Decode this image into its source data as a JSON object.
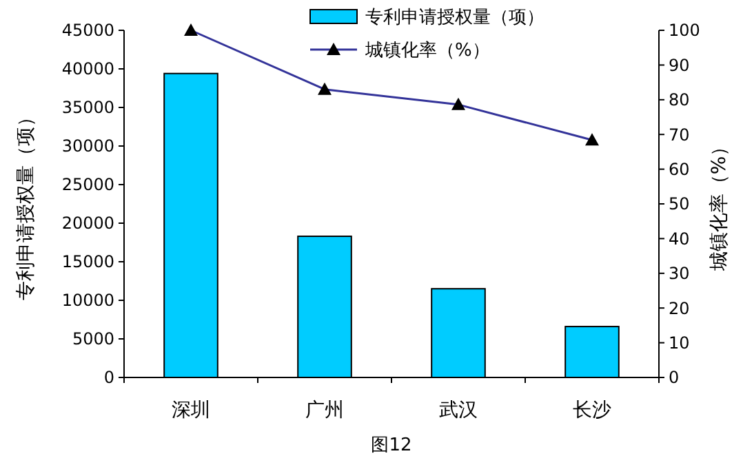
{
  "chart_data": {
    "type": "bar",
    "categories": [
      "深圳",
      "广州",
      "武汉",
      "长沙"
    ],
    "series": [
      {
        "name": "专利申请授权量（项）",
        "color": "#00ccff",
        "values": [
          39400,
          18300,
          11500,
          6600
        ]
      },
      {
        "name": "城镇化率（%）",
        "type": "line",
        "axis": "y2",
        "color": "#333399",
        "marker": "triangle",
        "values": [
          100,
          83,
          78.6,
          68.4
        ]
      }
    ],
    "ylabel": "专利申请授权量（项）",
    "y2label": "城镇化率（%）",
    "ylim": [
      0,
      45000
    ],
    "yticks": [
      0,
      5000,
      10000,
      15000,
      20000,
      25000,
      30000,
      35000,
      40000,
      45000
    ],
    "y2lim": [
      0,
      100
    ],
    "y2ticks": [
      0,
      10,
      20,
      30,
      40,
      50,
      60,
      70,
      80,
      90,
      100
    ],
    "legend": "top",
    "grid": false,
    "annotations": [
      "图12"
    ]
  }
}
